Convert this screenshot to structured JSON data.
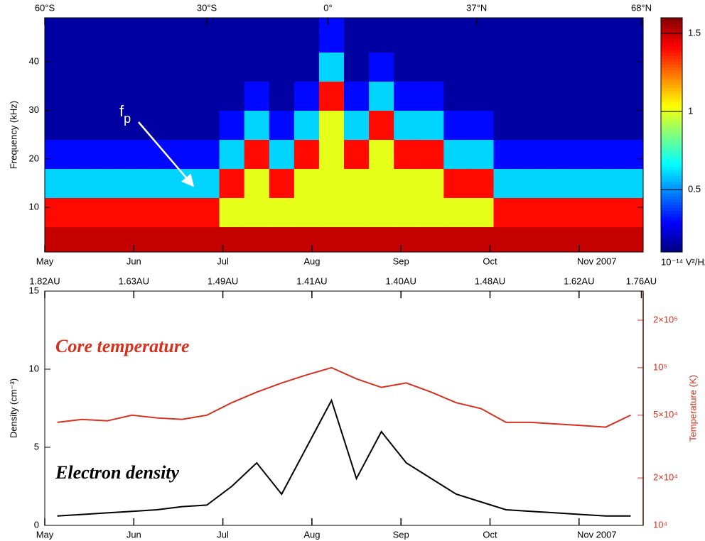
{
  "chart_data": [
    {
      "type": "heatmap",
      "y_label": "Frequency (kHz)",
      "xlim": [
        0,
        6.72
      ],
      "ylim": [
        0.8,
        49.1
      ],
      "yticks": [
        10,
        20,
        30,
        40
      ],
      "xticks": [
        {
          "value": 0,
          "label": "May"
        },
        {
          "value": 1,
          "label": "Jun"
        },
        {
          "value": 2,
          "label": "Jul"
        },
        {
          "value": 3,
          "label": "Aug"
        },
        {
          "value": 4,
          "label": "Sep"
        },
        {
          "value": 5,
          "label": "Oct"
        },
        {
          "value": 6,
          "label": "Nov 2007"
        }
      ],
      "x2ticks": [
        {
          "value": 0,
          "label": "60°S"
        },
        {
          "value": 1.82,
          "label": "30°S"
        },
        {
          "value": 3.18,
          "label": "0°"
        },
        {
          "value": 4.85,
          "label": "37°N"
        },
        {
          "value": 6.7,
          "label": "68°N"
        }
      ],
      "x_bins": [
        0,
        0.28,
        0.56,
        0.84,
        1.12,
        1.4,
        1.68,
        1.96,
        2.24,
        2.52,
        2.8,
        3.08,
        3.36,
        3.64,
        3.92,
        4.2,
        4.48,
        4.76,
        5.04,
        5.32,
        5.6,
        5.88,
        6.16,
        6.44,
        6.72
      ],
      "y_bins": [
        0.8,
        6,
        12,
        18,
        24,
        30,
        36,
        42,
        49.1
      ],
      "z": [
        [
          1.5,
          1.4,
          0.6,
          0.3,
          0.15,
          0.15,
          0.15,
          0.15
        ],
        [
          1.5,
          1.4,
          0.6,
          0.3,
          0.15,
          0.15,
          0.15,
          0.15
        ],
        [
          1.5,
          1.4,
          0.6,
          0.3,
          0.15,
          0.15,
          0.15,
          0.15
        ],
        [
          1.5,
          1.4,
          0.6,
          0.3,
          0.15,
          0.15,
          0.15,
          0.15
        ],
        [
          1.5,
          1.4,
          0.6,
          0.3,
          0.15,
          0.15,
          0.15,
          0.15
        ],
        [
          1.5,
          1.4,
          0.6,
          0.3,
          0.15,
          0.15,
          0.15,
          0.15
        ],
        [
          1.5,
          1.4,
          0.6,
          0.3,
          0.15,
          0.15,
          0.15,
          0.15
        ],
        [
          1.5,
          1.0,
          1.4,
          0.6,
          0.3,
          0.15,
          0.15,
          0.15
        ],
        [
          1.5,
          1.0,
          1.0,
          1.4,
          0.6,
          0.3,
          0.15,
          0.15
        ],
        [
          1.5,
          1.0,
          1.4,
          0.6,
          0.3,
          0.15,
          0.15,
          0.15
        ],
        [
          1.5,
          1.0,
          1.0,
          1.4,
          0.6,
          0.3,
          0.15,
          0.15
        ],
        [
          1.5,
          1.0,
          1.0,
          1.0,
          1.0,
          1.4,
          0.6,
          0.3
        ],
        [
          1.5,
          1.0,
          1.0,
          1.4,
          0.6,
          0.3,
          0.15,
          0.15
        ],
        [
          1.5,
          1.0,
          1.0,
          1.0,
          1.4,
          0.6,
          0.3,
          0.15
        ],
        [
          1.5,
          1.0,
          1.0,
          1.4,
          0.6,
          0.3,
          0.15,
          0.15
        ],
        [
          1.5,
          1.0,
          1.0,
          1.4,
          0.6,
          0.3,
          0.15,
          0.15
        ],
        [
          1.5,
          1.0,
          1.4,
          0.6,
          0.3,
          0.15,
          0.15,
          0.15
        ],
        [
          1.5,
          1.0,
          1.4,
          0.6,
          0.3,
          0.15,
          0.15,
          0.15
        ],
        [
          1.5,
          1.4,
          0.6,
          0.3,
          0.15,
          0.15,
          0.15,
          0.15
        ],
        [
          1.5,
          1.4,
          0.6,
          0.3,
          0.15,
          0.15,
          0.15,
          0.15
        ],
        [
          1.5,
          1.4,
          0.6,
          0.3,
          0.15,
          0.15,
          0.15,
          0.15
        ],
        [
          1.5,
          1.4,
          0.6,
          0.3,
          0.15,
          0.15,
          0.15,
          0.15
        ],
        [
          1.5,
          1.4,
          0.6,
          0.3,
          0.15,
          0.15,
          0.15,
          0.15
        ],
        [
          1.5,
          1.4,
          0.6,
          0.3,
          0.15,
          0.15,
          0.15,
          0.15
        ]
      ],
      "clim": [
        0.1,
        1.6
      ],
      "colorbar_ticks": [
        0.5,
        1,
        1.5
      ],
      "colorbar_label": "10⁻¹⁴ V²/Hz",
      "annotation": {
        "text": "f",
        "subscript": "p"
      }
    },
    {
      "type": "line",
      "y_label": "Density (cm⁻³)",
      "y2_label": "Temperature (K)",
      "xlim": [
        0,
        6.72
      ],
      "ylim": [
        0,
        15
      ],
      "yticks": [
        0,
        5,
        10,
        15
      ],
      "y2lim": [
        10000,
        306000
      ],
      "y2log": true,
      "y2ticks": [
        {
          "value": 10000,
          "label": "10⁴"
        },
        {
          "value": 20000,
          "label": "2×10⁴"
        },
        {
          "value": 50000,
          "label": "5×10⁴"
        },
        {
          "value": 100000,
          "label": "10⁵"
        },
        {
          "value": 200000,
          "label": "2×10⁵"
        }
      ],
      "xticks": [
        {
          "value": 0,
          "label": "May"
        },
        {
          "value": 1,
          "label": "Jun"
        },
        {
          "value": 2,
          "label": "Jul"
        },
        {
          "value": 3,
          "label": "Aug"
        },
        {
          "value": 4,
          "label": "Sep"
        },
        {
          "value": 5,
          "label": "Oct"
        },
        {
          "value": 6,
          "label": "Nov 2007"
        }
      ],
      "x2ticks": [
        {
          "value": 0,
          "label": "1.82AU"
        },
        {
          "value": 1,
          "label": "1.63AU"
        },
        {
          "value": 2,
          "label": "1.49AU"
        },
        {
          "value": 3,
          "label": "1.41AU"
        },
        {
          "value": 4,
          "label": "1.40AU"
        },
        {
          "value": 5,
          "label": "1.48AU"
        },
        {
          "value": 6,
          "label": "1.62AU"
        },
        {
          "value": 6.7,
          "label": "1.76AU"
        }
      ],
      "x": [
        0.14,
        0.42,
        0.7,
        0.98,
        1.26,
        1.54,
        1.82,
        2.1,
        2.38,
        2.66,
        2.94,
        3.22,
        3.5,
        3.78,
        4.06,
        4.34,
        4.62,
        4.9,
        5.18,
        5.46,
        5.74,
        6.02,
        6.3,
        6.58
      ],
      "series": [
        {
          "name": "Electron density",
          "color": "#000000",
          "values": [
            0.6,
            0.7,
            0.8,
            0.9,
            1.0,
            1.2,
            1.3,
            2.5,
            4,
            2,
            5,
            8,
            3,
            6,
            4,
            3,
            2,
            1.5,
            1.0,
            0.9,
            0.8,
            0.7,
            0.6,
            0.6
          ]
        },
        {
          "name": "Core temperature",
          "color": "#d9301e",
          "axis": "y2",
          "values": [
            45000,
            47000,
            46000,
            50000,
            48000,
            47000,
            50000,
            60000,
            70000,
            80000,
            90000,
            100000,
            85000,
            75000,
            80000,
            70000,
            60000,
            55000,
            45000,
            45000,
            44000,
            43000,
            42000,
            50000
          ]
        }
      ]
    }
  ]
}
